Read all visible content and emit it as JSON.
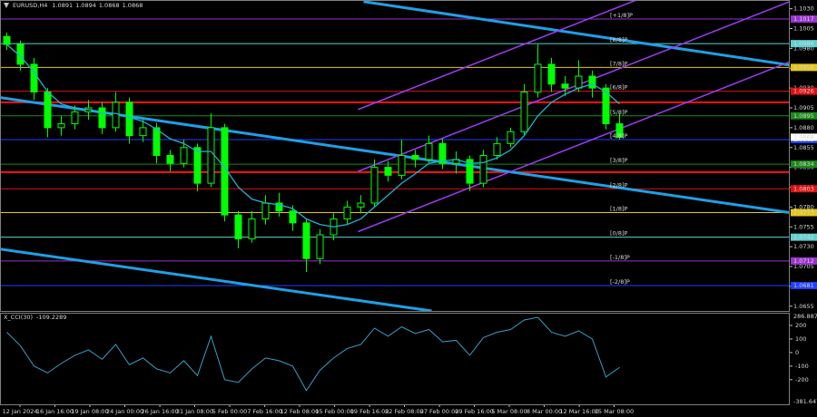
{
  "chart_data": [
    {
      "type": "candlestick",
      "title": "EURUSD,H4",
      "header_values": [
        1.0891,
        1.0894,
        1.0868,
        1.0868
      ],
      "xlim": [
        -0.5,
        57.5
      ],
      "xticks": [
        {
          "value": 0.97,
          "label": "12 Jan 2024"
        },
        {
          "value": 3.53,
          "label": "16 Jan 16:00"
        },
        {
          "value": 6.1,
          "label": "19 Jan 08:00"
        },
        {
          "value": 8.67,
          "label": "24 Jan 00:00"
        },
        {
          "value": 11.24,
          "label": "26 Jan 16:00"
        },
        {
          "value": 13.8,
          "label": "31 Jan 08:00"
        },
        {
          "value": 16.37,
          "label": "5 Feb 00:00"
        },
        {
          "value": 18.94,
          "label": "7 Feb 16:00"
        },
        {
          "value": 21.5,
          "label": "12 Feb 08:00"
        },
        {
          "value": 24.07,
          "label": "15 Feb 00:00"
        },
        {
          "value": 26.64,
          "label": "19 Feb 16:00"
        },
        {
          "value": 29.2,
          "label": "22 Feb 08:00"
        },
        {
          "value": 31.77,
          "label": "27 Feb 00:00"
        },
        {
          "value": 34.34,
          "label": "29 Feb 16:00"
        },
        {
          "value": 36.9,
          "label": "5 Mar 08:00"
        },
        {
          "value": 39.47,
          "label": "8 Mar 00:00"
        },
        {
          "value": 42.04,
          "label": "12 Mar 16:00"
        },
        {
          "value": 44.6,
          "label": "15 Mar 08:00"
        }
      ],
      "ylim": [
        1.0649,
        1.1041
      ],
      "yticks": [
        {
          "value": 1.103,
          "label": "1.1030"
        },
        1.1005,
        {
          "value": 1.098,
          "label": "1.0980"
        },
        1.0955,
        {
          "value": 1.093,
          "label": "1.0930"
        },
        1.0905,
        {
          "value": 1.088,
          "label": "1.0880"
        },
        1.0855,
        {
          "value": 1.083,
          "label": "1.0830"
        },
        1.0805,
        {
          "value": 1.078,
          "label": "1.0780"
        },
        1.0755,
        {
          "value": 1.073,
          "label": "1.0730"
        },
        1.0705,
        {
          "value": 1.068,
          "label": "1.0680"
        },
        1.0655
      ],
      "color_up": "#00ff00",
      "color_down": "#00ff00",
      "open": [
        1.0995,
        1.0985,
        1.096,
        1.0925,
        1.088,
        1.0885,
        1.09,
        1.0905,
        1.088,
        1.0912,
        1.087,
        1.088,
        1.0845,
        1.0835,
        1.0855,
        1.081,
        1.088,
        1.077,
        1.074,
        1.0765,
        1.0785,
        1.0775,
        1.076,
        1.0715,
        1.0745,
        1.0765,
        1.078,
        1.0785,
        1.083,
        1.082,
        1.0845,
        1.084,
        1.086,
        1.0835,
        1.084,
        1.081,
        1.0845,
        1.086,
        1.0875,
        1.0925,
        1.096,
        1.0935,
        1.093,
        1.0945,
        1.093,
        1.0885
      ],
      "high": [
        1.1,
        1.099,
        1.0968,
        1.093,
        1.0895,
        1.0908,
        1.0915,
        1.0912,
        1.0925,
        1.0918,
        1.089,
        1.0886,
        1.0852,
        1.0865,
        1.086,
        1.0898,
        1.0885,
        1.0775,
        1.0775,
        1.0795,
        1.0798,
        1.0782,
        1.0765,
        1.0752,
        1.0772,
        1.0788,
        1.0795,
        1.084,
        1.0838,
        1.0865,
        1.0852,
        1.087,
        1.0866,
        1.085,
        1.0845,
        1.0852,
        1.0868,
        1.088,
        1.0935,
        1.0985,
        1.0968,
        1.0945,
        1.0965,
        1.0952,
        1.0935,
        1.0898
      ],
      "low": [
        1.0978,
        1.0952,
        1.0915,
        1.0868,
        1.087,
        1.0878,
        1.089,
        1.0872,
        1.0875,
        1.086,
        1.0862,
        1.0835,
        1.0825,
        1.083,
        1.08,
        1.0805,
        1.0762,
        1.0728,
        1.0735,
        1.0758,
        1.0768,
        1.075,
        1.0698,
        1.0708,
        1.0738,
        1.0758,
        1.0772,
        1.078,
        1.0812,
        1.0815,
        1.083,
        1.0835,
        1.0828,
        1.0822,
        1.08,
        1.0805,
        1.084,
        1.0855,
        1.087,
        1.0918,
        1.0925,
        1.092,
        1.0925,
        1.0918,
        1.0878,
        1.0865
      ],
      "close": [
        1.0985,
        1.096,
        1.0925,
        1.088,
        1.0885,
        1.09,
        1.0905,
        1.088,
        1.0912,
        1.087,
        1.088,
        1.0845,
        1.0835,
        1.0855,
        1.081,
        1.088,
        1.077,
        1.074,
        1.0765,
        1.0785,
        1.0775,
        1.076,
        1.0715,
        1.0745,
        1.0765,
        1.078,
        1.0785,
        1.083,
        1.082,
        1.0845,
        1.084,
        1.086,
        1.0835,
        1.084,
        1.081,
        1.0845,
        1.086,
        1.0875,
        1.0925,
        1.096,
        1.0935,
        1.093,
        1.0945,
        1.093,
        1.0885,
        1.0868
      ],
      "ma": {
        "color": "#1fb3d6",
        "values": [
          1.0985,
          1.097,
          1.095,
          1.0925,
          1.091,
          1.0905,
          1.0903,
          1.0898,
          1.0898,
          1.0893,
          1.0888,
          1.0878,
          1.0866,
          1.086,
          1.085,
          1.085,
          1.083,
          1.0805,
          1.079,
          1.0785,
          1.0783,
          1.0778,
          1.0765,
          1.0758,
          1.0755,
          1.0758,
          1.0765,
          1.078,
          1.0795,
          1.081,
          1.0822,
          1.0835,
          1.0838,
          1.084,
          1.0835,
          1.0836,
          1.0842,
          1.0852,
          1.087,
          1.0895,
          1.0912,
          1.0922,
          1.093,
          1.0935,
          1.0925,
          1.091
        ]
      },
      "last_price": 1.0868,
      "levels": [
        {
          "label": "[+1/8]P",
          "value": 1.1017,
          "color": "#9932cc"
        },
        {
          "label": "[8/8]P",
          "value": 1.0986,
          "color": "#5fd0d0"
        },
        {
          "label": "[7/8]P",
          "value": 1.0956,
          "color": "#e6c619"
        },
        {
          "label": "[6/8]P",
          "value": 1.0926,
          "color": "#e01010"
        },
        {
          "label": "[5/8]P",
          "value": 1.0895,
          "color": "#1a8a1a"
        },
        {
          "label": "[4/8]P",
          "value": 1.0865,
          "color": "#2040ff"
        },
        {
          "label": "[3/8]P",
          "value": 1.0834,
          "color": "#1a8a1a"
        },
        {
          "label": "[2/8]P",
          "value": 1.0803,
          "color": "#e01010"
        },
        {
          "label": "[1/8]P",
          "value": 1.0773,
          "color": "#e6c619"
        },
        {
          "label": "[0/8]P",
          "value": 1.0742,
          "color": "#5fd0d0"
        },
        {
          "label": "[-1/8]P",
          "value": 1.0712,
          "color": "#9932cc"
        },
        {
          "label": "[-2/8]P",
          "value": 1.0681,
          "color": "#2040ff"
        }
      ],
      "red_lines": [
        {
          "value": 1.0912,
          "color": "#ff1010"
        },
        {
          "value": 1.0824,
          "color": "#ff1010"
        }
      ],
      "trend_lines": [
        {
          "color": "#1ea0e6",
          "width": 3,
          "from": [
            -0.5,
            1.0918
          ],
          "to": [
            57.5,
            1.0773
          ]
        },
        {
          "color": "#1ea0e6",
          "width": 3,
          "from": [
            -0.5,
            1.0727
          ],
          "to": [
            31.2,
            1.0649
          ]
        },
        {
          "color": "#1ea0e6",
          "width": 3,
          "from": [
            26.2,
            1.1039
          ],
          "to": [
            57.5,
            1.0959
          ]
        },
        {
          "color": "#9b3cf0",
          "width": 1.5,
          "from": [
            25.8,
            1.0749
          ],
          "to": [
            57.5,
            1.0963
          ]
        },
        {
          "color": "#9b3cf0",
          "width": 1.5,
          "from": [
            25.8,
            1.0825
          ],
          "to": [
            57.5,
            1.1039
          ]
        },
        {
          "color": "#9b3cf0",
          "width": 1.5,
          "from": [
            25.8,
            1.0903
          ],
          "to": [
            57.5,
            1.1117
          ]
        }
      ]
    },
    {
      "type": "line",
      "title": "X_CCI(30)",
      "current": -109.2289,
      "ylim": [
        -381.647,
        286.887
      ],
      "yticks": [
        200,
        100,
        0,
        -100,
        -200
      ],
      "color": "#3a9ec4",
      "values": [
        150,
        50,
        -100,
        -150,
        -80,
        -20,
        20,
        -50,
        60,
        -90,
        -40,
        -120,
        -150,
        -60,
        -170,
        120,
        -200,
        -220,
        -120,
        -40,
        -60,
        -100,
        -280,
        -130,
        -40,
        30,
        60,
        180,
        120,
        190,
        140,
        170,
        80,
        90,
        -20,
        110,
        150,
        170,
        240,
        260,
        150,
        120,
        160,
        100,
        -180,
        -109.2289
      ]
    }
  ]
}
